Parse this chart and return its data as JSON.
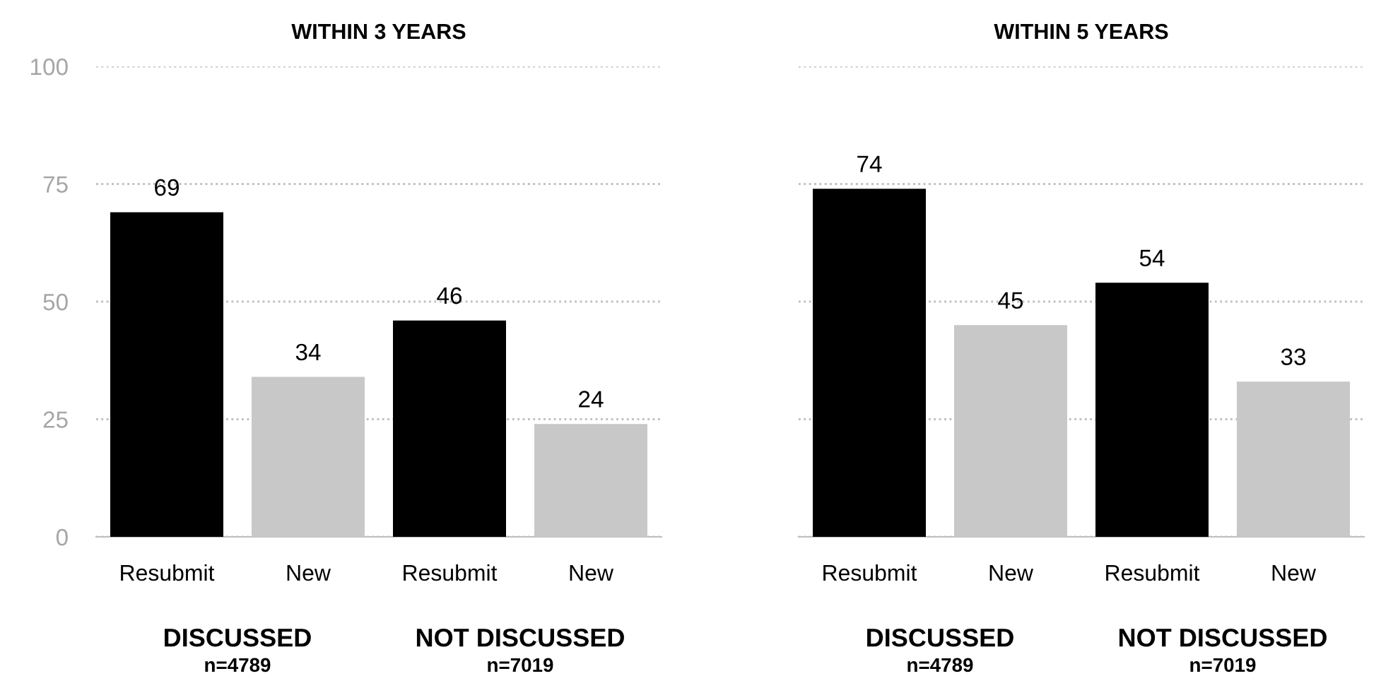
{
  "chart_data": [
    {
      "type": "bar",
      "title": "WITHIN 3 YEARS",
      "categories": [
        "Resubmit",
        "New",
        "Resubmit",
        "New"
      ],
      "values": [
        69,
        34,
        46,
        24
      ],
      "colors": [
        "#000000",
        "#c8c8c8",
        "#000000",
        "#c8c8c8"
      ],
      "data_labels": true,
      "ylim": [
        0,
        100
      ],
      "yticks": [
        0,
        25,
        50,
        75,
        100
      ],
      "grid": "y",
      "annotations": [
        "DISCUSSED",
        "n=4789",
        "NOT DISCUSSED",
        "n=7019"
      ]
    },
    {
      "type": "bar",
      "title": "WITHIN 5 YEARS",
      "categories": [
        "Resubmit",
        "New",
        "Resubmit",
        "New"
      ],
      "values": [
        74,
        45,
        54,
        33
      ],
      "colors": [
        "#000000",
        "#c8c8c8",
        "#000000",
        "#c8c8c8"
      ],
      "data_labels": true,
      "ylim": [
        0,
        100
      ],
      "yticks": [
        0,
        25,
        50,
        75,
        100
      ],
      "grid": "y",
      "tick_labels": "x",
      "annotations": [
        "DISCUSSED",
        "n=4789",
        "NOT DISCUSSED",
        "n=7019"
      ]
    }
  ]
}
